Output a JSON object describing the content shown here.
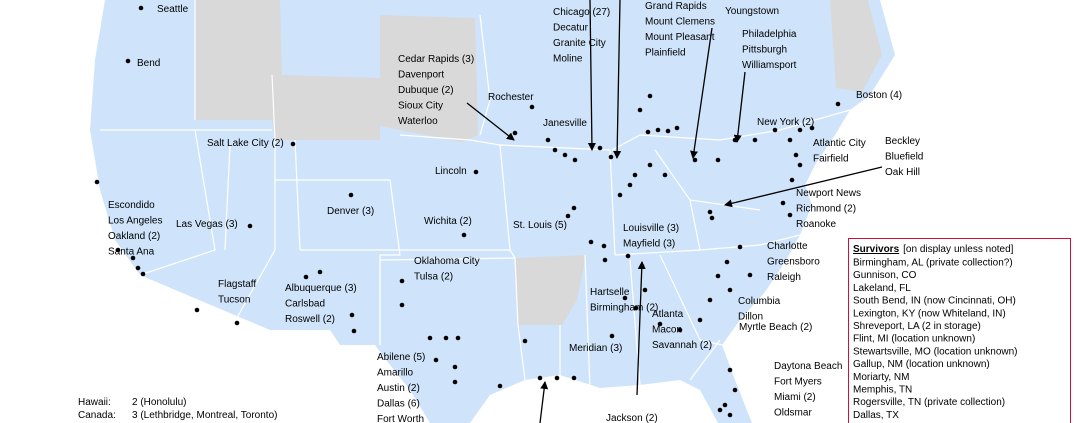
{
  "cities": [
    [
      "Seattle"
    ],
    [
      "Bend"
    ],
    [
      "Salt Lake City (2)"
    ],
    [
      "Escondido",
      "Los Angeles",
      "Oakland (2)",
      "Santa Ana"
    ],
    [
      "Las Vegas (3)"
    ],
    [
      "Flagstaff",
      "Tucson"
    ],
    [
      "Albuquerque (3)",
      "Carlsbad",
      "Roswell (2)"
    ],
    [
      "Denver (3)"
    ],
    [
      "Wichita (2)"
    ],
    [
      "Lincoln"
    ],
    [
      "Cedar Rapids (3)",
      "Davenport",
      "Dubuque (2)",
      "Sioux City",
      "Waterloo"
    ],
    [
      "Rochester"
    ],
    [
      "Janesville"
    ],
    [
      "Chicago (27)",
      "Decatur",
      "Granite City",
      "Moline"
    ],
    [
      "Grand Rapids",
      "Mount Clemens",
      "Mount Pleasant",
      "Plainfield"
    ],
    [
      "Youngstown"
    ],
    [
      "Philadelphia",
      "Pittsburgh",
      "Williamsport"
    ],
    [
      "Boston (4)"
    ],
    [
      "New York (2)"
    ],
    [
      "Atlantic City",
      "Fairfield"
    ],
    [
      "Beckley",
      "Bluefield",
      "Oak Hill"
    ],
    [
      "Newport News",
      "Richmond (2)",
      "Roanoke"
    ],
    [
      "St. Louis (5)"
    ],
    [
      "Louisville (3)",
      "Mayfield (3)"
    ],
    [
      "Oklahoma City",
      "Tulsa (2)"
    ],
    [
      "Hartselle",
      "Birmingham (2)"
    ],
    [
      "Atlanta",
      "Macon",
      "Savannah (2)"
    ],
    [
      "Meridian (3)"
    ],
    [
      "Charlotte",
      "Greensboro",
      "Raleigh"
    ],
    [
      "Columbia",
      "Dillon"
    ],
    [
      "Myrtle Beach (2)"
    ],
    [
      "Abilene (5)",
      "Amarillo",
      "Austin (2)",
      "Dallas (6)",
      "Fort Worth"
    ],
    [
      "Jackson (2)"
    ],
    [
      "Daytona Beach",
      "Fort Myers",
      "Miami (2)",
      "Oldsmar"
    ]
  ],
  "footnotes": [
    {
      "label": "Hawaii:",
      "text": "2 (Honolulu)"
    },
    {
      "label": "Canada:",
      "text": "3 (Lethbridge, Montreal, Toronto)"
    }
  ],
  "legend": {
    "title": "Survivors",
    "title_color": "#d0103a",
    "note_open": "[on display",
    "note_open_color": "#1f6fd1",
    "note_close": "unless noted]",
    "note_close_color": "#d0103a",
    "entries": [
      {
        "text": "Birmingham, AL (private collection?)",
        "color": "#d0103a"
      },
      {
        "text": "Gunnison, CO",
        "color": "#1f6fd1"
      },
      {
        "text": "Lakeland, FL",
        "color": "#1f6fd1"
      },
      {
        "text": "South Bend, IN (now Cincinnati, OH)",
        "color": "#d0103a"
      },
      {
        "text": "Lexington, KY (now Whiteland, IN)",
        "color": "#d0103a"
      },
      {
        "text": "Shreveport, LA (2 in storage)",
        "color": "#d0103a"
      },
      {
        "text": "Flint, MI (location unknown)",
        "color": "#d0103a"
      },
      {
        "text": "Stewartsville, MO (location unknown)",
        "color": "#d0103a"
      },
      {
        "text": "Gallup, NM (location unknown)",
        "color": "#d0103a"
      },
      {
        "text": "Moriarty, NM",
        "color": "#1f6fd1"
      },
      {
        "text": "Memphis, TN",
        "color": "#1f6fd1"
      },
      {
        "text": "Rogersville, TN (private collection)",
        "color": "#d0103a"
      },
      {
        "text": "Dallas, TX",
        "color": "#1f6fd1"
      }
    ]
  }
}
